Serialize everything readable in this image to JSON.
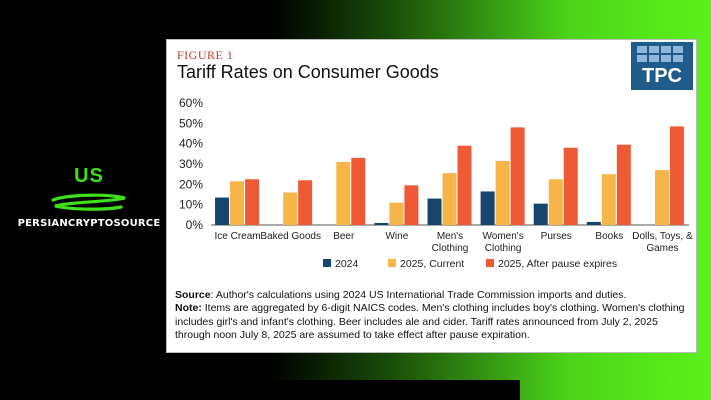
{
  "brand": {
    "country": "US",
    "handle": "PERSIANCRYPTOSOURCE"
  },
  "figure_label": "FIGURE 1",
  "logo_text": "TPC",
  "colors": {
    "series_2024": "#17456b",
    "series_current": "#f7b548",
    "series_after": "#ee5a35",
    "figure_label": "#c0392b",
    "logo": "#1f5c8b"
  },
  "chart_data": {
    "type": "bar",
    "title": "Tariff Rates on Consumer Goods",
    "categories": [
      [
        "Ice Cream"
      ],
      [
        "Baked Goods"
      ],
      [
        "Beer"
      ],
      [
        "Wine"
      ],
      [
        "Men's",
        "Clothing"
      ],
      [
        "Women's",
        "Clothing"
      ],
      [
        "Purses"
      ],
      [
        "Books"
      ],
      [
        "Dolls, Toys, &",
        "Games"
      ]
    ],
    "series": [
      {
        "name": "2024",
        "values": [
          13.5,
          0,
          0,
          1,
          13,
          16.5,
          10.5,
          1.5,
          0
        ]
      },
      {
        "name": "2025, Current",
        "values": [
          21.5,
          16,
          31,
          11,
          25.5,
          31.5,
          22.5,
          25,
          27
        ]
      },
      {
        "name": "2025, After pause expires",
        "values": [
          22.5,
          22,
          33,
          19.5,
          39,
          48,
          38,
          39.5,
          48.5
        ]
      }
    ],
    "yticks": [
      "0%",
      "10%",
      "20%",
      "30%",
      "40%",
      "50%",
      "60%"
    ],
    "ylim": [
      0,
      60
    ],
    "grid": false,
    "legend_position": "bottom"
  },
  "notes": {
    "source_label": "Source",
    "source_text": ": Author's calculations using 2024 US International Trade Commission imports and duties.",
    "note_label": "Note:",
    "note_text": " Items are aggregated by 6-digit NAICS codes. Men's clothing includes boy's clothing. Women's clothing includes girl's and infant's clothing. Beer includes ale and cider. Tariff rates announced from July 2, 2025 through noon July 8, 2025 are assumed to take effect after pause expiration."
  }
}
